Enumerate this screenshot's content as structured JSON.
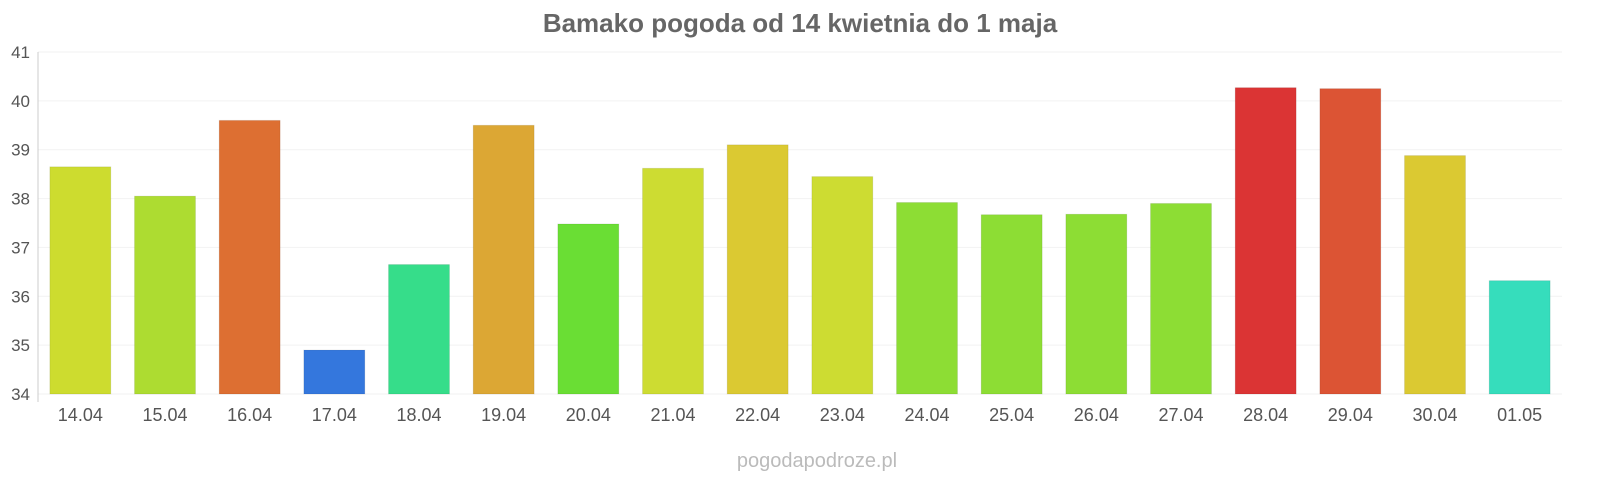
{
  "chart_data": {
    "type": "bar",
    "title": "Bamako pogoda od 14 kwietnia do 1 maja",
    "xlabel": "",
    "ylabel": "",
    "ylim": [
      34,
      41
    ],
    "yticks": [
      34,
      35,
      36,
      37,
      38,
      39,
      40,
      41
    ],
    "grid": true,
    "legend": "none",
    "categories": [
      "14.04",
      "15.04",
      "16.04",
      "17.04",
      "18.04",
      "19.04",
      "20.04",
      "21.04",
      "22.04",
      "23.04",
      "24.04",
      "25.04",
      "26.04",
      "27.04",
      "28.04",
      "29.04",
      "30.04",
      "01.05"
    ],
    "values": [
      38.65,
      38.05,
      39.6,
      34.9,
      36.65,
      39.5,
      37.48,
      38.62,
      39.1,
      38.45,
      37.92,
      37.67,
      37.68,
      37.9,
      40.27,
      40.25,
      38.88,
      36.32
    ],
    "colors": [
      "#cddc2f",
      "#addc31",
      "#dd6f32",
      "#3477dd",
      "#36dd8a",
      "#dca734",
      "#6ade34",
      "#cddc32",
      "#dbc932",
      "#cddc32",
      "#8ddd34",
      "#8ddd34",
      "#8ddd34",
      "#8ddd34",
      "#db3434",
      "#dc5434",
      "#dbc932",
      "#36ddbc"
    ]
  },
  "footer": {
    "watermark": "pogodapodroze.pl"
  }
}
